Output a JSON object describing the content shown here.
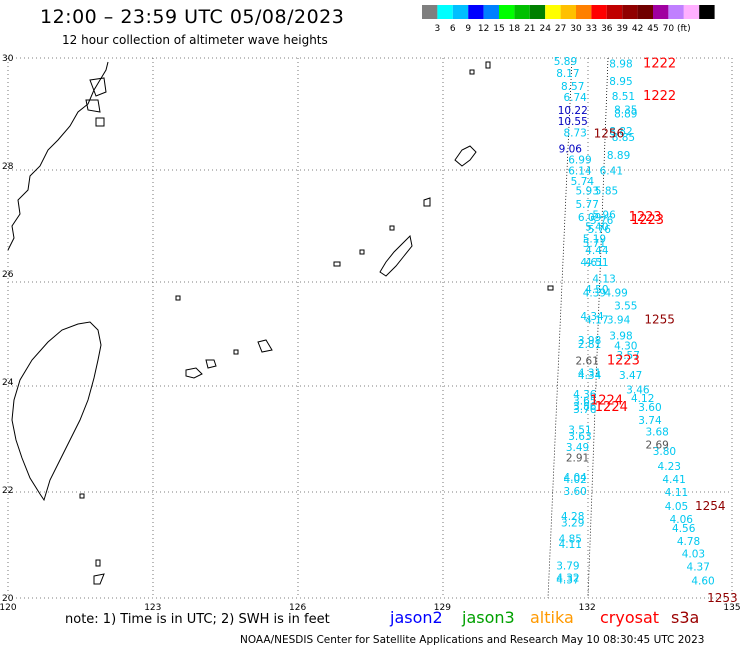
{
  "header": {
    "title": "12:00 – 23:59 UTC 05/08/2023",
    "subtitle": "12 hour collection of altimeter wave heights"
  },
  "colorbar": {
    "colors": [
      "#7f7f7f",
      "#00ffff",
      "#00bfff",
      "#0000ff",
      "#0080ff",
      "#00ff00",
      "#00c000",
      "#008000",
      "#ffff00",
      "#ffc000",
      "#ff8000",
      "#ff0000",
      "#c00000",
      "#900000",
      "#700000",
      "#a000a0",
      "#c080ff",
      "#ffb0ff",
      "#000000"
    ],
    "labels": [
      "3",
      "6",
      "9",
      "12",
      "15",
      "18",
      "21",
      "24",
      "27",
      "30",
      "33",
      "36",
      "39",
      "42",
      "45",
      "70",
      "(ft)"
    ]
  },
  "axes": {
    "lon_labels": [
      "120",
      "123",
      "126",
      "129",
      "132",
      "135"
    ],
    "lat_labels": [
      "30",
      "28",
      "26",
      "24",
      "22",
      "20"
    ]
  },
  "map": {
    "lon_range": [
      120,
      135
    ],
    "lat_range": [
      20,
      30
    ]
  },
  "obs_cyan": [
    {
      "text": "5.89",
      "lon": 131.55,
      "lat": 29.94
    },
    {
      "text": "8.98",
      "lon": 132.7,
      "lat": 29.9
    },
    {
      "text": "8.17",
      "lon": 131.6,
      "lat": 29.72
    },
    {
      "text": "8.95",
      "lon": 132.7,
      "lat": 29.57
    },
    {
      "text": "8.57",
      "lon": 131.7,
      "lat": 29.48
    },
    {
      "text": "6.74",
      "lon": 131.75,
      "lat": 29.28
    },
    {
      "text": "8.51",
      "lon": 132.75,
      "lat": 29.3
    },
    {
      "text": "8.35",
      "lon": 132.8,
      "lat": 29.05
    },
    {
      "text": "8.89",
      "lon": 132.8,
      "lat": 28.97
    },
    {
      "text": "8.73",
      "lon": 131.75,
      "lat": 28.62
    },
    {
      "text": "8.82",
      "lon": 132.7,
      "lat": 28.65
    },
    {
      "text": "8.85",
      "lon": 132.75,
      "lat": 28.54
    },
    {
      "text": "6.99",
      "lon": 131.85,
      "lat": 28.12
    },
    {
      "text": "8.89",
      "lon": 132.65,
      "lat": 28.2
    },
    {
      "text": "6.14",
      "lon": 131.85,
      "lat": 27.92
    },
    {
      "text": "6.41",
      "lon": 132.5,
      "lat": 27.92
    },
    {
      "text": "5.74",
      "lon": 131.9,
      "lat": 27.72
    },
    {
      "text": "5.93",
      "lon": 132.0,
      "lat": 27.55
    },
    {
      "text": "5.85",
      "lon": 132.4,
      "lat": 27.55
    },
    {
      "text": "5.77",
      "lon": 132.0,
      "lat": 27.3
    },
    {
      "text": "6.09",
      "lon": 132.05,
      "lat": 27.06
    },
    {
      "text": "5.96",
      "lon": 132.35,
      "lat": 27.1
    },
    {
      "text": "5.76",
      "lon": 132.3,
      "lat": 27.0
    },
    {
      "text": "5.40",
      "lon": 132.2,
      "lat": 26.88
    },
    {
      "text": "5.76",
      "lon": 132.25,
      "lat": 26.83
    },
    {
      "text": "5.19",
      "lon": 132.15,
      "lat": 26.66
    },
    {
      "text": "5.71",
      "lon": 132.15,
      "lat": 26.57
    },
    {
      "text": "4.44",
      "lon": 132.2,
      "lat": 26.44
    },
    {
      "text": "4.61",
      "lon": 132.1,
      "lat": 26.22
    },
    {
      "text": "4.51",
      "lon": 132.2,
      "lat": 26.22
    },
    {
      "text": "4.13",
      "lon": 132.35,
      "lat": 25.92
    },
    {
      "text": "4.50",
      "lon": 132.2,
      "lat": 25.72
    },
    {
      "text": "4.39",
      "lon": 132.15,
      "lat": 25.66
    },
    {
      "text": "4.99",
      "lon": 132.6,
      "lat": 25.66
    },
    {
      "text": "3.55",
      "lon": 132.8,
      "lat": 25.42
    },
    {
      "text": "4.34",
      "lon": 132.1,
      "lat": 25.22
    },
    {
      "text": "4.17",
      "lon": 132.2,
      "lat": 25.16
    },
    {
      "text": "3.94",
      "lon": 132.65,
      "lat": 25.16
    },
    {
      "text": "3.98",
      "lon": 132.7,
      "lat": 24.86
    },
    {
      "text": "3.98",
      "lon": 132.05,
      "lat": 24.78
    },
    {
      "text": "2.81",
      "lon": 132.05,
      "lat": 24.7
    },
    {
      "text": "4.30",
      "lon": 132.8,
      "lat": 24.68
    },
    {
      "text": "3.57",
      "lon": 132.85,
      "lat": 24.5
    },
    {
      "text": "4.31",
      "lon": 132.05,
      "lat": 24.18
    },
    {
      "text": "4.34",
      "lon": 132.05,
      "lat": 24.13
    },
    {
      "text": "3.47",
      "lon": 132.9,
      "lat": 24.13
    },
    {
      "text": "3.46",
      "lon": 133.05,
      "lat": 23.86
    },
    {
      "text": "4.36",
      "lon": 131.95,
      "lat": 23.78
    },
    {
      "text": "4.12",
      "lon": 133.15,
      "lat": 23.7
    },
    {
      "text": "3.65",
      "lon": 131.95,
      "lat": 23.66
    },
    {
      "text": "3.60",
      "lon": 133.3,
      "lat": 23.54
    },
    {
      "text": "3.86",
      "lon": 131.95,
      "lat": 23.56
    },
    {
      "text": "3.76",
      "lon": 131.95,
      "lat": 23.5
    },
    {
      "text": "3.74",
      "lon": 133.3,
      "lat": 23.3
    },
    {
      "text": "3.51",
      "lon": 131.85,
      "lat": 23.12
    },
    {
      "text": "3.68",
      "lon": 133.45,
      "lat": 23.08
    },
    {
      "text": "3.63",
      "lon": 131.85,
      "lat": 23.0
    },
    {
      "text": "3.49",
      "lon": 131.8,
      "lat": 22.8
    },
    {
      "text": "3.80",
      "lon": 133.6,
      "lat": 22.72
    },
    {
      "text": "4.23",
      "lon": 133.7,
      "lat": 22.44
    },
    {
      "text": "4.04",
      "lon": 131.75,
      "lat": 22.24
    },
    {
      "text": "4.02",
      "lon": 131.75,
      "lat": 22.2
    },
    {
      "text": "4.41",
      "lon": 133.8,
      "lat": 22.2
    },
    {
      "text": "3.60",
      "lon": 131.75,
      "lat": 21.98
    },
    {
      "text": "4.11",
      "lon": 133.85,
      "lat": 21.96
    },
    {
      "text": "4.05",
      "lon": 133.85,
      "lat": 21.7
    },
    {
      "text": "4.28",
      "lon": 131.7,
      "lat": 21.52
    },
    {
      "text": "4.06",
      "lon": 133.95,
      "lat": 21.46
    },
    {
      "text": "3.29",
      "lon": 131.7,
      "lat": 21.4
    },
    {
      "text": "4.56",
      "lon": 134.0,
      "lat": 21.3
    },
    {
      "text": "4.85",
      "lon": 131.65,
      "lat": 21.1
    },
    {
      "text": "4.78",
      "lon": 134.1,
      "lat": 21.06
    },
    {
      "text": "4.11",
      "lon": 131.65,
      "lat": 21.0
    },
    {
      "text": "4.03",
      "lon": 134.2,
      "lat": 20.82
    },
    {
      "text": "3.79",
      "lon": 131.6,
      "lat": 20.6
    },
    {
      "text": "4.37",
      "lon": 134.3,
      "lat": 20.58
    },
    {
      "text": "4.32",
      "lon": 131.6,
      "lat": 20.38
    },
    {
      "text": "4.37",
      "lon": 131.6,
      "lat": 20.34
    },
    {
      "text": "4.60",
      "lon": 134.4,
      "lat": 20.32
    }
  ],
  "obs_blue": [
    {
      "text": "10.22",
      "lon": 131.7,
      "lat": 29.04
    },
    {
      "text": "10.55",
      "lon": 131.7,
      "lat": 28.83
    },
    {
      "text": "9.06",
      "lon": 131.65,
      "lat": 28.32
    }
  ],
  "obs_gray": [
    {
      "text": "2.61",
      "lon": 132.0,
      "lat": 24.4
    },
    {
      "text": "2.69",
      "lon": 133.45,
      "lat": 22.84
    },
    {
      "text": "2.91",
      "lon": 131.8,
      "lat": 22.6
    }
  ],
  "time_red": [
    {
      "text": "1222",
      "lon": 133.5,
      "lat": 29.9
    },
    {
      "text": "1222",
      "lon": 133.5,
      "lat": 29.3
    },
    {
      "text": "1223",
      "lon": 133.2,
      "lat": 27.06
    },
    {
      "text": "1223",
      "lon": 133.25,
      "lat": 27.0
    },
    {
      "text": "1223",
      "lon": 132.75,
      "lat": 24.4
    },
    {
      "text": "1224",
      "lon": 132.4,
      "lat": 23.66
    },
    {
      "text": "1224",
      "lon": 132.5,
      "lat": 23.54
    }
  ],
  "time_darkred": [
    {
      "text": "1256",
      "lon": 132.45,
      "lat": 28.6
    },
    {
      "text": "1255",
      "lon": 133.5,
      "lat": 25.16
    },
    {
      "text": "1254",
      "lon": 134.55,
      "lat": 21.7
    },
    {
      "text": "1253",
      "lon": 134.8,
      "lat": 20.0
    }
  ],
  "note": "note:  1) Time is in UTC;  2) SWH is in feet",
  "satellites": [
    {
      "name": "jason2",
      "color": "#0000ff"
    },
    {
      "name": "jason3",
      "color": "#00a000"
    },
    {
      "name": "altika",
      "color": "#ff9900"
    },
    {
      "name": "cryosat",
      "color": "#ff0000"
    },
    {
      "name": "s3a",
      "color": "#9b0000"
    }
  ],
  "credit": "NOAA/NESDIS Center for Satellite Applications and Research     May 10 08:30:45 UTC 2023"
}
